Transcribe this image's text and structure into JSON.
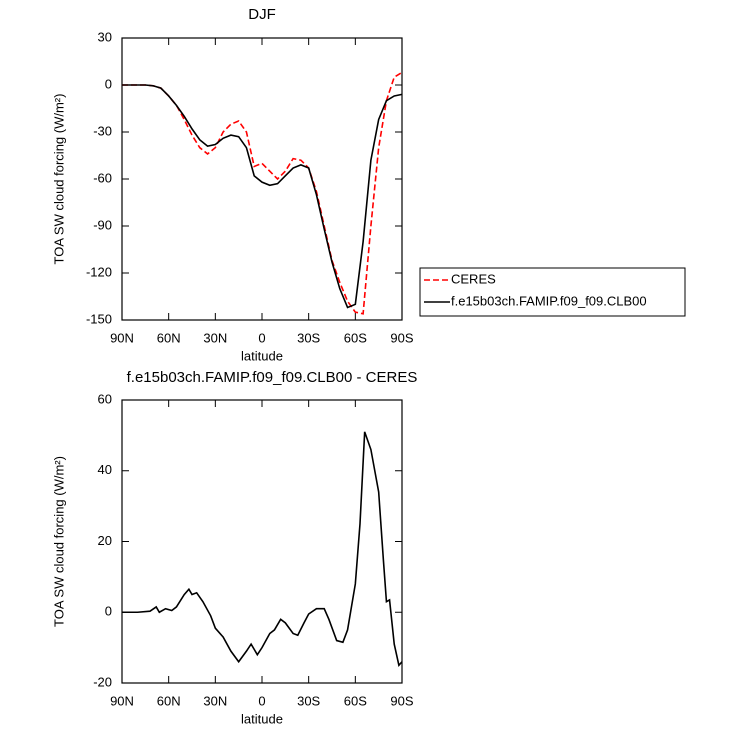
{
  "chart_data": [
    {
      "type": "line",
      "title": "DJF",
      "x_label": "latitude",
      "y_label": "TOA SW cloud forcing (W/m²)",
      "x": [
        90,
        85,
        80,
        75,
        70,
        65,
        60,
        55,
        50,
        45,
        40,
        35,
        30,
        25,
        20,
        15,
        10,
        5,
        0,
        -5,
        -10,
        -15,
        -20,
        -25,
        -30,
        -35,
        -40,
        -45,
        -50,
        -55,
        -60,
        -65,
        -70,
        -75,
        -80,
        -85,
        -90
      ],
      "series": [
        {
          "name": "CERES",
          "color": "#ff0000",
          "linestyle": "dashed",
          "values": [
            0,
            0,
            0,
            0,
            -0.5,
            -2,
            -7,
            -13,
            -22,
            -32,
            -40,
            -44,
            -40,
            -30,
            -25,
            -23,
            -30,
            -52,
            -50,
            -55,
            -60,
            -55,
            -47,
            -48,
            -53,
            -68,
            -90,
            -112,
            -126,
            -138,
            -145,
            -146,
            -90,
            -40,
            -10,
            5,
            8
          ]
        },
        {
          "name": "f.e15b03ch.FAMIP.f09_f09.CLB00",
          "color": "#000000",
          "linestyle": "solid",
          "values": [
            0,
            0,
            0,
            0,
            -0.5,
            -2,
            -7,
            -13,
            -20,
            -28,
            -35,
            -39,
            -38,
            -34,
            -32,
            -33,
            -40,
            -58,
            -62,
            -64,
            -63,
            -58,
            -53,
            -51,
            -53,
            -70,
            -92,
            -113,
            -130,
            -142,
            -140,
            -100,
            -48,
            -22,
            -10,
            -7,
            -6
          ]
        }
      ],
      "xlim": [
        90,
        -90
      ],
      "xticks": [
        {
          "value": 90,
          "label": "90N"
        },
        {
          "value": 60,
          "label": "60N"
        },
        {
          "value": 30,
          "label": "30N"
        },
        0,
        {
          "value": -30,
          "label": "30S"
        },
        {
          "value": -60,
          "label": "60S"
        },
        {
          "value": -90,
          "label": "90S"
        }
      ],
      "ylim": [
        -150,
        30
      ],
      "yticks": [
        30,
        0,
        -30,
        -60,
        -90,
        -120,
        -150
      ],
      "legend": "right",
      "grid": false
    },
    {
      "type": "line",
      "title": "f.e15b03ch.FAMIP.f09_f09.CLB00 - CERES",
      "x_label": "latitude",
      "y_label": "TOA SW cloud forcing (W/m²)",
      "x": [
        90,
        80,
        72,
        68,
        66,
        62,
        58,
        55,
        50,
        47,
        45,
        42,
        38,
        33,
        30,
        25,
        20,
        15,
        10,
        7,
        3,
        0,
        -5,
        -8,
        -12,
        -15,
        -20,
        -23,
        -27,
        -30,
        -35,
        -40,
        -43,
        -48,
        -52,
        -55,
        -60,
        -63,
        -66,
        -70,
        -75,
        -78,
        -80,
        -82,
        -85,
        -88,
        -90
      ],
      "series": [
        {
          "color": "#000000",
          "linestyle": "solid",
          "values": [
            0,
            0,
            0.3,
            1.5,
            0,
            1,
            0.5,
            1.5,
            5,
            6.5,
            5,
            5.5,
            3,
            -1,
            -4.5,
            -7,
            -11,
            -14,
            -11,
            -9,
            -12,
            -10,
            -6,
            -5,
            -2,
            -3,
            -6,
            -6.5,
            -3,
            -0.5,
            1,
            1,
            -2,
            -8,
            -8.5,
            -5,
            8,
            25,
            51,
            46,
            34,
            15,
            3,
            3.5,
            -9,
            -15,
            -14
          ]
        }
      ],
      "xlim": [
        90,
        -90
      ],
      "xticks": [
        {
          "value": 90,
          "label": "90N"
        },
        {
          "value": 60,
          "label": "60N"
        },
        {
          "value": 30,
          "label": "30N"
        },
        0,
        {
          "value": -30,
          "label": "30S"
        },
        {
          "value": -60,
          "label": "60S"
        },
        {
          "value": -90,
          "label": "90S"
        }
      ],
      "ylim": [
        -20,
        60
      ],
      "yticks": [
        -20,
        0,
        20,
        40,
        60
      ],
      "grid": false
    }
  ]
}
